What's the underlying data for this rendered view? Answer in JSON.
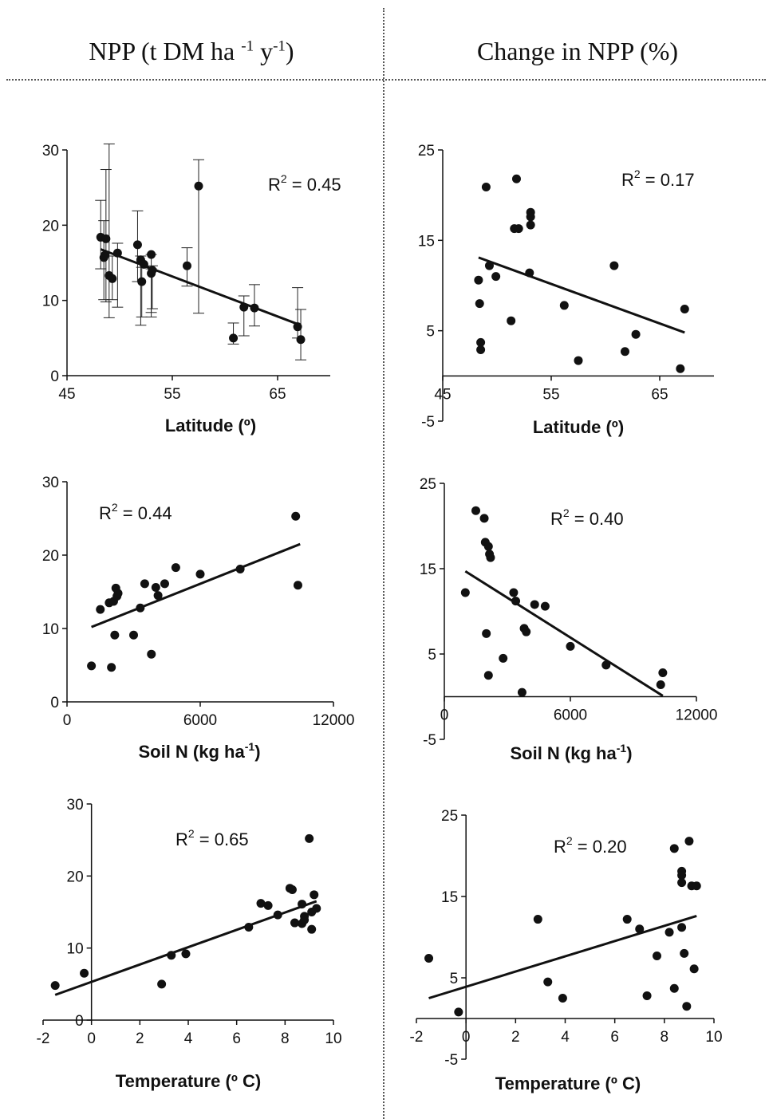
{
  "headers": {
    "left": {
      "text": "NPP (t DM ha",
      "sup1": "-1",
      "mid": " y",
      "sup2": "-1",
      "end": ")"
    },
    "right": {
      "text": "Change in NPP (%)"
    }
  },
  "chart_data": [
    {
      "type": "scatter",
      "column": "left",
      "xlabel": "Latitude (º)",
      "x_ticks": [
        45,
        55,
        65
      ],
      "y_ticks": [
        0,
        10,
        20,
        30
      ],
      "xlim": [
        45,
        70
      ],
      "ylim": [
        0,
        30
      ],
      "r2_label": "R",
      "r2_value": " = 0.45",
      "points": [
        {
          "x": 48.2,
          "y": 18.4,
          "err_low": 14.2,
          "err_high": 23.3
        },
        {
          "x": 48.5,
          "y": 15.7,
          "err_low": 10.1,
          "err_high": 20.6
        },
        {
          "x": 48.6,
          "y": 16.0
        },
        {
          "x": 48.7,
          "y": 18.2,
          "err_low": 9.8,
          "err_high": 27.4
        },
        {
          "x": 49.0,
          "y": 13.3,
          "err_low": 7.7,
          "err_high": 30.8
        },
        {
          "x": 49.3,
          "y": 12.9,
          "err_low": 10.1,
          "err_high": 15.9
        },
        {
          "x": 49.8,
          "y": 16.3,
          "err_low": 9.1,
          "err_high": 17.6
        },
        {
          "x": 51.7,
          "y": 17.4,
          "err_low": 12.5,
          "err_high": 21.9
        },
        {
          "x": 52.0,
          "y": 15.4,
          "err_low": 6.7,
          "err_high": 15.9
        },
        {
          "x": 52.1,
          "y": 12.5,
          "err_low": 7.8,
          "err_high": 14.4
        },
        {
          "x": 52.3,
          "y": 14.8
        },
        {
          "x": 53.0,
          "y": 13.6,
          "err_low": 8.4,
          "err_high": 14.2
        },
        {
          "x": 53.0,
          "y": 16.1,
          "err_low": 7.8,
          "err_high": 16.1
        },
        {
          "x": 53.1,
          "y": 14.0,
          "err_low": 8.9,
          "err_high": 14.6
        },
        {
          "x": 56.4,
          "y": 14.6,
          "err_low": 11.9,
          "err_high": 17.0
        },
        {
          "x": 57.5,
          "y": 25.2,
          "err_low": 8.3,
          "err_high": 28.7
        },
        {
          "x": 60.8,
          "y": 5.0,
          "err_low": 4.2,
          "err_high": 7.0
        },
        {
          "x": 61.8,
          "y": 9.1,
          "err_low": 5.3,
          "err_high": 10.6
        },
        {
          "x": 62.8,
          "y": 9.0,
          "err_low": 6.6,
          "err_high": 12.1
        },
        {
          "x": 66.9,
          "y": 6.5,
          "err_low": 5.0,
          "err_high": 11.7
        },
        {
          "x": 67.2,
          "y": 4.8,
          "err_low": 2.1,
          "err_high": 8.8
        }
      ],
      "trend": {
        "x1": 48.2,
        "y1": 16.8,
        "x2": 67.2,
        "y2": 6.7
      }
    },
    {
      "type": "scatter",
      "column": "right",
      "xlabel": "Latitude (º)",
      "x_ticks": [
        45,
        55,
        65
      ],
      "y_ticks": [
        -5,
        5,
        15,
        25
      ],
      "xlim": [
        45,
        70
      ],
      "ylim": [
        -5,
        25
      ],
      "r2_label": "R",
      "r2_value": " = 0.17",
      "points": [
        {
          "x": 48.3,
          "y": 10.6
        },
        {
          "x": 48.4,
          "y": 8.0
        },
        {
          "x": 48.5,
          "y": 3.7
        },
        {
          "x": 48.5,
          "y": 2.9
        },
        {
          "x": 49.0,
          "y": 20.9
        },
        {
          "x": 49.3,
          "y": 12.2
        },
        {
          "x": 49.9,
          "y": 11.0
        },
        {
          "x": 51.3,
          "y": 6.1
        },
        {
          "x": 51.6,
          "y": 16.3
        },
        {
          "x": 51.8,
          "y": 21.8
        },
        {
          "x": 52.0,
          "y": 16.3
        },
        {
          "x": 53.0,
          "y": 11.4
        },
        {
          "x": 53.1,
          "y": 18.1
        },
        {
          "x": 53.1,
          "y": 17.6
        },
        {
          "x": 53.1,
          "y": 16.7
        },
        {
          "x": 56.2,
          "y": 7.8
        },
        {
          "x": 57.5,
          "y": 1.7
        },
        {
          "x": 60.8,
          "y": 12.2
        },
        {
          "x": 61.8,
          "y": 2.7
        },
        {
          "x": 62.8,
          "y": 4.6
        },
        {
          "x": 66.9,
          "y": 0.8
        },
        {
          "x": 67.3,
          "y": 7.4
        }
      ],
      "trend": {
        "x1": 48.3,
        "y1": 13.1,
        "x2": 67.3,
        "y2": 4.8
      }
    },
    {
      "type": "scatter",
      "column": "left",
      "xlabel": "Soil N (kg ha",
      "xlabel_sup": "-1",
      "xlabel_end": ")",
      "x_ticks": [
        0,
        6000,
        12000
      ],
      "y_ticks": [
        0,
        10,
        20,
        30
      ],
      "xlim": [
        0,
        12000
      ],
      "ylim": [
        0,
        30
      ],
      "r2_label": "R",
      "r2_value": " = 0.44",
      "points": [
        {
          "x": 1100,
          "y": 4.9
        },
        {
          "x": 1500,
          "y": 12.6
        },
        {
          "x": 1900,
          "y": 13.5
        },
        {
          "x": 2000,
          "y": 4.7
        },
        {
          "x": 2100,
          "y": 13.7
        },
        {
          "x": 2200,
          "y": 15.5
        },
        {
          "x": 2250,
          "y": 14.4
        },
        {
          "x": 2300,
          "y": 14.8
        },
        {
          "x": 2150,
          "y": 9.1
        },
        {
          "x": 3000,
          "y": 9.1
        },
        {
          "x": 3300,
          "y": 12.8
        },
        {
          "x": 3500,
          "y": 16.1
        },
        {
          "x": 3800,
          "y": 6.5
        },
        {
          "x": 4000,
          "y": 15.6
        },
        {
          "x": 4100,
          "y": 14.5
        },
        {
          "x": 4400,
          "y": 16.1
        },
        {
          "x": 4900,
          "y": 18.3
        },
        {
          "x": 6000,
          "y": 17.4
        },
        {
          "x": 7800,
          "y": 18.1
        },
        {
          "x": 10300,
          "y": 25.3
        },
        {
          "x": 10400,
          "y": 15.9
        }
      ],
      "trend": {
        "x1": 1100,
        "y1": 10.2,
        "x2": 10500,
        "y2": 21.5
      }
    },
    {
      "type": "scatter",
      "column": "right",
      "xlabel": "Soil N (kg ha",
      "xlabel_sup": "-1",
      "xlabel_end": ")",
      "x_ticks": [
        0,
        6000,
        12000
      ],
      "y_ticks": [
        -5,
        5,
        15,
        25
      ],
      "xlim": [
        0,
        12000
      ],
      "ylim": [
        -5,
        25
      ],
      "r2_label": "R",
      "r2_value": " = 0.40",
      "points": [
        {
          "x": 1000,
          "y": 12.2
        },
        {
          "x": 1500,
          "y": 21.8
        },
        {
          "x": 1900,
          "y": 20.9
        },
        {
          "x": 1950,
          "y": 18.1
        },
        {
          "x": 2000,
          "y": 7.4
        },
        {
          "x": 2100,
          "y": 17.6
        },
        {
          "x": 2150,
          "y": 16.7
        },
        {
          "x": 2200,
          "y": 16.3
        },
        {
          "x": 2100,
          "y": 2.5
        },
        {
          "x": 2800,
          "y": 4.5
        },
        {
          "x": 3300,
          "y": 12.2
        },
        {
          "x": 3400,
          "y": 11.2
        },
        {
          "x": 3700,
          "y": 0.5
        },
        {
          "x": 3800,
          "y": 8.0
        },
        {
          "x": 3900,
          "y": 7.6
        },
        {
          "x": 4300,
          "y": 10.8
        },
        {
          "x": 4800,
          "y": 10.6
        },
        {
          "x": 6000,
          "y": 5.9
        },
        {
          "x": 7700,
          "y": 3.7
        },
        {
          "x": 10300,
          "y": 1.4
        },
        {
          "x": 10400,
          "y": 2.8
        }
      ],
      "trend": {
        "x1": 1000,
        "y1": 14.7,
        "x2": 10400,
        "y2": 0.1
      }
    },
    {
      "type": "scatter",
      "column": "left",
      "xlabel": "Temperature (º C)",
      "x_ticks": [
        -2,
        0,
        2,
        4,
        6,
        8,
        10
      ],
      "y_ticks": [
        0,
        10,
        20,
        30
      ],
      "xlim": [
        -2,
        10
      ],
      "ylim": [
        0,
        30
      ],
      "r2_label": "R",
      "r2_value": " = 0.65",
      "points": [
        {
          "x": -1.5,
          "y": 4.8
        },
        {
          "x": -0.3,
          "y": 6.5
        },
        {
          "x": 2.9,
          "y": 5.0
        },
        {
          "x": 3.3,
          "y": 9.0
        },
        {
          "x": 3.9,
          "y": 9.2
        },
        {
          "x": 6.5,
          "y": 12.9
        },
        {
          "x": 7.0,
          "y": 16.2
        },
        {
          "x": 7.3,
          "y": 15.9
        },
        {
          "x": 7.7,
          "y": 14.6
        },
        {
          "x": 8.2,
          "y": 18.3
        },
        {
          "x": 8.3,
          "y": 18.1
        },
        {
          "x": 8.4,
          "y": 13.5
        },
        {
          "x": 8.7,
          "y": 13.4
        },
        {
          "x": 8.7,
          "y": 16.1
        },
        {
          "x": 8.8,
          "y": 14.4
        },
        {
          "x": 9.0,
          "y": 25.2
        },
        {
          "x": 9.1,
          "y": 12.6
        },
        {
          "x": 9.1,
          "y": 15.0
        },
        {
          "x": 9.2,
          "y": 17.4
        },
        {
          "x": 9.3,
          "y": 15.5
        },
        {
          "x": 8.8,
          "y": 13.9
        }
      ],
      "trend": {
        "x1": -1.5,
        "y1": 3.5,
        "x2": 9.3,
        "y2": 16.5
      }
    },
    {
      "type": "scatter",
      "column": "right",
      "xlabel": "Temperature (º C)",
      "x_ticks": [
        -2,
        0,
        2,
        4,
        6,
        8,
        10
      ],
      "y_ticks": [
        -5,
        5,
        15,
        25
      ],
      "xlim": [
        -2,
        10
      ],
      "ylim": [
        -5,
        25
      ],
      "r2_label": "R",
      "r2_value": " = 0.20",
      "points": [
        {
          "x": -1.5,
          "y": 7.4
        },
        {
          "x": -0.3,
          "y": 0.8
        },
        {
          "x": 2.9,
          "y": 12.2
        },
        {
          "x": 3.3,
          "y": 4.5
        },
        {
          "x": 3.9,
          "y": 2.5
        },
        {
          "x": 6.5,
          "y": 12.2
        },
        {
          "x": 7.0,
          "y": 11.0
        },
        {
          "x": 7.3,
          "y": 2.8
        },
        {
          "x": 7.7,
          "y": 7.7
        },
        {
          "x": 8.2,
          "y": 10.6
        },
        {
          "x": 8.4,
          "y": 20.9
        },
        {
          "x": 8.4,
          "y": 3.7
        },
        {
          "x": 8.7,
          "y": 11.2
        },
        {
          "x": 8.7,
          "y": 18.1
        },
        {
          "x": 8.7,
          "y": 17.6
        },
        {
          "x": 8.7,
          "y": 16.7
        },
        {
          "x": 8.8,
          "y": 8.0
        },
        {
          "x": 8.9,
          "y": 1.5
        },
        {
          "x": 9.0,
          "y": 21.8
        },
        {
          "x": 9.1,
          "y": 16.3
        },
        {
          "x": 9.3,
          "y": 16.3
        },
        {
          "x": 9.2,
          "y": 6.1
        }
      ],
      "trend": {
        "x1": -1.5,
        "y1": 2.5,
        "x2": 9.3,
        "y2": 12.6
      }
    }
  ]
}
